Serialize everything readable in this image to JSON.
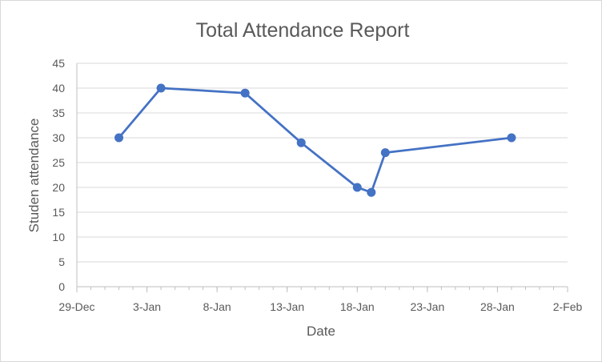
{
  "chart_data": {
    "type": "scatter",
    "title": "Total Attendance Report",
    "xlabel": "Date",
    "ylabel": "Studen attendance",
    "x_tick_labels": [
      "29-Dec",
      "3-Jan",
      "8-Jan",
      "13-Jan",
      "18-Jan",
      "23-Jan",
      "28-Jan",
      "2-Feb"
    ],
    "y_tick_labels": [
      "0",
      "5",
      "10",
      "15",
      "20",
      "25",
      "30",
      "35",
      "40",
      "45"
    ],
    "xlim": [
      "29-Dec",
      "2-Feb"
    ],
    "ylim": [
      0,
      45
    ],
    "grid": "horizontal",
    "markers": true,
    "lines": true,
    "series": [
      {
        "color": "#4472c4",
        "x": [
          "1-Jan",
          "4-Jan",
          "10-Jan",
          "14-Jan",
          "18-Jan",
          "19-Jan",
          "20-Jan",
          "29-Jan"
        ],
        "values": [
          30,
          40,
          39,
          29,
          20,
          19,
          27,
          30
        ]
      }
    ]
  }
}
